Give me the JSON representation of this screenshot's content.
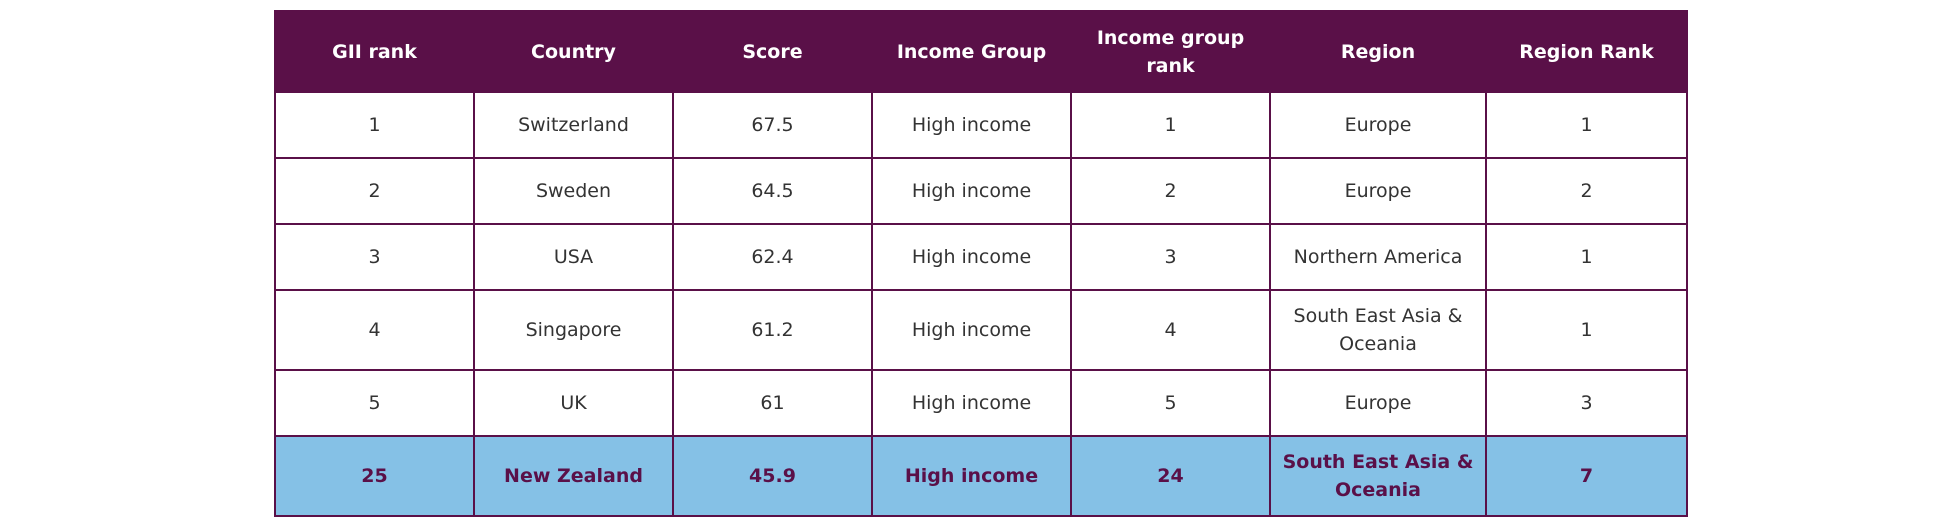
{
  "table": {
    "headers": [
      "GII rank",
      "Country",
      "Score",
      "Income Group",
      "Income group rank",
      "Region",
      "Region Rank"
    ],
    "rows": [
      [
        "1",
        "Switzerland",
        "67.5",
        "High income",
        "1",
        "Europe",
        "1"
      ],
      [
        "2",
        "Sweden",
        "64.5",
        "High income",
        "2",
        "Europe",
        "2"
      ],
      [
        "3",
        "USA",
        "62.4",
        "High income",
        "3",
        "Northern America",
        "1"
      ],
      [
        "4",
        "Singapore",
        "61.2",
        "High income",
        "4",
        "South East Asia & Oceania",
        "1"
      ],
      [
        "5",
        "UK",
        "61",
        "High income",
        "5",
        "Europe",
        "3"
      ],
      [
        "25",
        "New Zealand",
        "45.9",
        "High income",
        "24",
        "South East Asia & Oceania",
        "7"
      ]
    ]
  },
  "colors": {
    "header_bg": "#5a1048",
    "header_text": "#ffffff",
    "border": "#5a1048",
    "highlight_bg": "#85c1e6",
    "highlight_text": "#5a1048",
    "body_text": "#333333"
  }
}
